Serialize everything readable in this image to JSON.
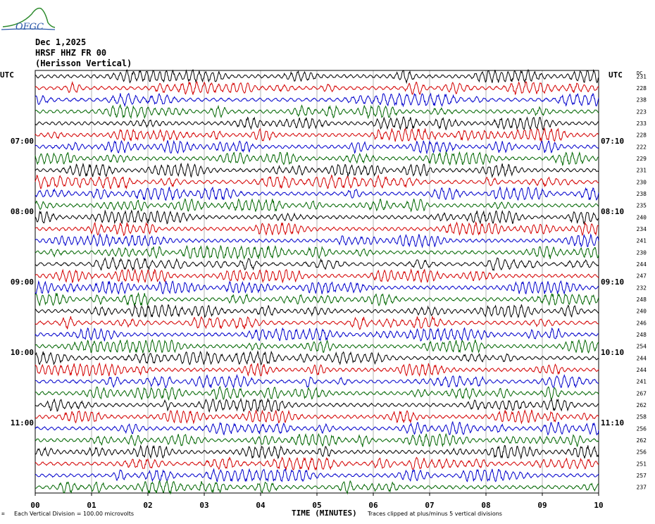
{
  "header": {
    "logo_text": "OFGC",
    "date": "Dec 1,2025",
    "station": "HRSF HHZ FR 00",
    "name": "(Herisson Vertical)"
  },
  "footer": {
    "scale_note": "Each Vertical Division = 100.00 microvolts",
    "clip_note": "Traces clipped at plus/minus 5 vertical divisions",
    "xaxis_title": "TIME (MINUTES)"
  },
  "colors": {
    "trace_cycle": [
      "#000000",
      "#d40000",
      "#0000cc",
      "#006600"
    ],
    "grid": "#808080"
  },
  "chart_data": {
    "type": "line",
    "title": "",
    "xlabel": "TIME (MINUTES)",
    "ylabel": "",
    "x_ticks": [
      "00",
      "01",
      "02",
      "03",
      "04",
      "05",
      "06",
      "07",
      "08",
      "09",
      "10"
    ],
    "xlim": [
      0,
      10
    ],
    "left_axis_label": "UTC",
    "right_axis_label": "UTC",
    "dc_label": "DC",
    "left_time_labels": [
      {
        "row": 6,
        "text": "07:00"
      },
      {
        "row": 12,
        "text": "08:00"
      },
      {
        "row": 18,
        "text": "09:00"
      },
      {
        "row": 24,
        "text": "10:00"
      },
      {
        "row": 30,
        "text": "11:00"
      }
    ],
    "right_time_labels": [
      {
        "row": 6,
        "text": "07:10"
      },
      {
        "row": 12,
        "text": "08:10"
      },
      {
        "row": 18,
        "text": "09:10"
      },
      {
        "row": 24,
        "text": "10:10"
      },
      {
        "row": 30,
        "text": "11:10"
      }
    ],
    "dc_values": [
      "231",
      "228",
      "238",
      "223",
      "233",
      "228",
      "222",
      "229",
      "231",
      "230",
      "238",
      "235",
      "240",
      "234",
      "241",
      "230",
      "244",
      "247",
      "232",
      "248",
      "240",
      "246",
      "248",
      "254",
      "244",
      "244",
      "241",
      "267",
      "262",
      "258",
      "256",
      "262",
      "256",
      "251",
      "257",
      "237"
    ],
    "trace_count": 36,
    "minutes_per_trace": 10
  }
}
